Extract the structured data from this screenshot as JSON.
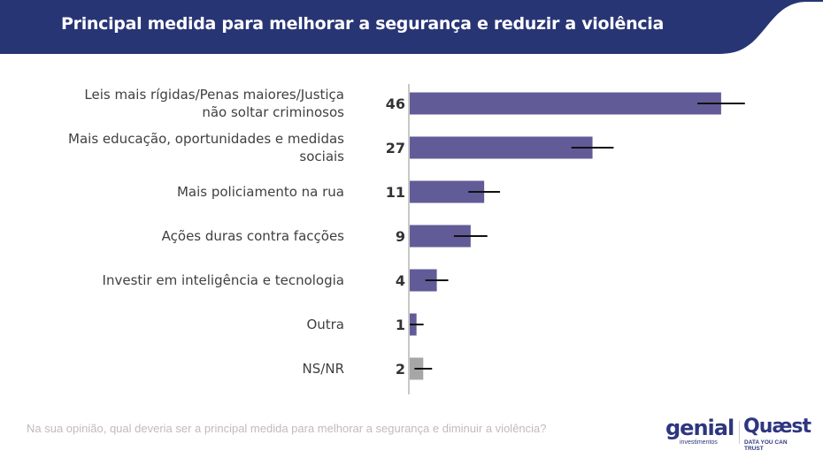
{
  "header": {
    "title": "Principal medida para melhorar a segurança e reduzir a violência",
    "color": "#283575"
  },
  "chart_data": {
    "type": "bar",
    "orientation": "horizontal",
    "categories": [
      [
        "Leis mais rígidas/Penas maiores/Justiça",
        "não soltar criminosos"
      ],
      [
        "Mais educação, oportunidades e medidas",
        "sociais"
      ],
      [
        "Mais policiamento na rua"
      ],
      [
        "Ações duras contra facções"
      ],
      [
        "Investir em inteligência e tecnologia"
      ],
      [
        "Outra"
      ],
      [
        "NS/NR"
      ]
    ],
    "values": [
      46,
      27,
      11,
      9,
      4,
      1,
      2
    ],
    "error_margin": [
      2.7,
      2.4,
      1.8,
      1.9,
      1.3,
      0.8,
      1.0
    ],
    "colors": [
      "#615c97",
      "#615c97",
      "#615c97",
      "#615c97",
      "#615c97",
      "#615c97",
      "#a6a6a6"
    ],
    "data_labels": [
      "46",
      "27",
      "11",
      "9",
      "4",
      "1",
      "2"
    ],
    "xlim": [
      0,
      50
    ],
    "grid": false
  },
  "footer": {
    "question": "Na sua opinião, qual deveria ser a principal medida para melhorar a segurança e diminuir a violência?",
    "logo_genial": "genial",
    "logo_genial_sub": "investimentos",
    "logo_quaest": "Quæst",
    "logo_quaest_sub": "DATA YOU CAN TRUST"
  }
}
